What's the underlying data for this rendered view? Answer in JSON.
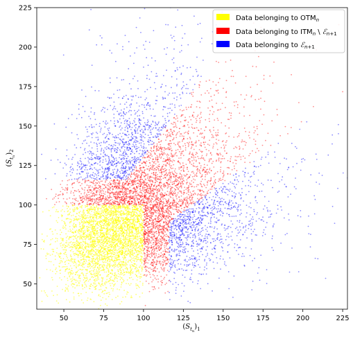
{
  "chart_data": {
    "type": "scatter",
    "xlabel": "(S_{t_n})_1",
    "ylabel": "(S_{t_n})_2",
    "xlim": [
      33,
      228
    ],
    "ylim": [
      34,
      225
    ],
    "x_ticks": [
      50,
      75,
      100,
      125,
      150,
      175,
      200,
      225
    ],
    "y_ticks": [
      50,
      75,
      100,
      125,
      150,
      175,
      200,
      225
    ],
    "grid": false,
    "legend_position": "top-right",
    "series": [
      {
        "name": "Data belonging to OTM_n",
        "color": "#ffff00",
        "region": "x < 100 and y < 100",
        "center": [
          70,
          75
        ],
        "spread": [
          18,
          18
        ]
      },
      {
        "name": "Data belonging to ITM_n \\ E_{n+1}",
        "color": "#ff0000",
        "region": "band along the diagonal (x > 100 or y > 100) near the exercise boundary",
        "center": [
          120,
          118
        ],
        "spread": [
          30,
          30
        ]
      },
      {
        "name": "Data belonging to E_{n+1}",
        "color": "#0000ff",
        "region": "upper-left and lower-right lobes",
        "lobes": [
          {
            "center": [
              82,
              140
            ],
            "spread": [
              22,
              24
            ]
          },
          {
            "center": [
              140,
              82
            ],
            "spread": [
              24,
              22
            ]
          }
        ]
      }
    ]
  }
}
